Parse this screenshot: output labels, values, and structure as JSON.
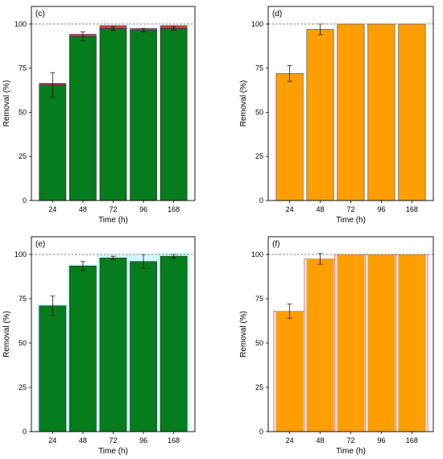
{
  "chart_data": [
    {
      "panel": "(c)",
      "type": "bar",
      "categories": [
        "24",
        "48",
        "72",
        "96",
        "168"
      ],
      "values": [
        65.5,
        93.0,
        97.5,
        96.5,
        97.5
      ],
      "errors": [
        7.0,
        2.5,
        1.0,
        1.0,
        1.0
      ],
      "stack_top": [
        66.5,
        94.3,
        99.2,
        97.6,
        99.2
      ],
      "xlabel": "Time (h)",
      "ylabel": "Removal (%)",
      "ylim": [
        0,
        110
      ],
      "yticks": [
        0,
        25,
        50,
        75,
        100
      ],
      "reference_line": 100,
      "colors": {
        "fill": "#057d1c",
        "stroke": "#333333",
        "stack": "#d9334f",
        "stack_edge": "#1f7ab3",
        "error": "#000000"
      }
    },
    {
      "panel": "(d)",
      "type": "bar",
      "categories": [
        "24",
        "48",
        "72",
        "96",
        "168"
      ],
      "values": [
        72.0,
        97.0,
        100.0,
        100.0,
        100.0
      ],
      "errors": [
        4.5,
        3.0,
        0,
        0,
        0
      ],
      "xlabel": "Time (h)",
      "ylabel": "Removal (%)",
      "ylim": [
        0,
        110
      ],
      "yticks": [
        0,
        25,
        50,
        75,
        100
      ],
      "reference_line": 100,
      "colors": {
        "fill": "#ff9e00",
        "stroke": "#555555",
        "error": "#000000"
      }
    },
    {
      "panel": "(e)",
      "type": "bar",
      "categories": [
        "24",
        "48",
        "72",
        "96",
        "168"
      ],
      "values": [
        71.0,
        93.5,
        98.0,
        96.0,
        99.0
      ],
      "errors": [
        5.5,
        2.5,
        1.0,
        4.0,
        1.0
      ],
      "background_values": [
        72.0,
        94.5,
        100.0,
        100.0,
        101.0
      ],
      "xlabel": "Time (h)",
      "ylabel": "Removal (%)",
      "ylim": [
        0,
        110
      ],
      "yticks": [
        0,
        25,
        50,
        75,
        100
      ],
      "reference_line": 100,
      "colors": {
        "fill": "#057d1c",
        "stroke": "#333333",
        "background": "#ccfbfb",
        "error": "#000000"
      }
    },
    {
      "panel": "(f)",
      "type": "bar",
      "categories": [
        "24",
        "48",
        "72",
        "96",
        "168"
      ],
      "values": [
        68.0,
        97.5,
        100.0,
        100.0,
        100.0
      ],
      "errors": [
        4.0,
        3.0,
        0,
        0,
        0
      ],
      "background_values": [
        68.0,
        97.5,
        100.0,
        100.0,
        100.0
      ],
      "xlabel": "Time (h)",
      "ylabel": "Removal (%)",
      "ylim": [
        0,
        110
      ],
      "yticks": [
        0,
        25,
        50,
        75,
        100
      ],
      "reference_line": 100,
      "colors": {
        "fill": "#ff9e00",
        "stroke": "#d3b25a",
        "background": "#fbe6ef",
        "background_edge": "#c02f55",
        "error": "#000000"
      }
    }
  ]
}
